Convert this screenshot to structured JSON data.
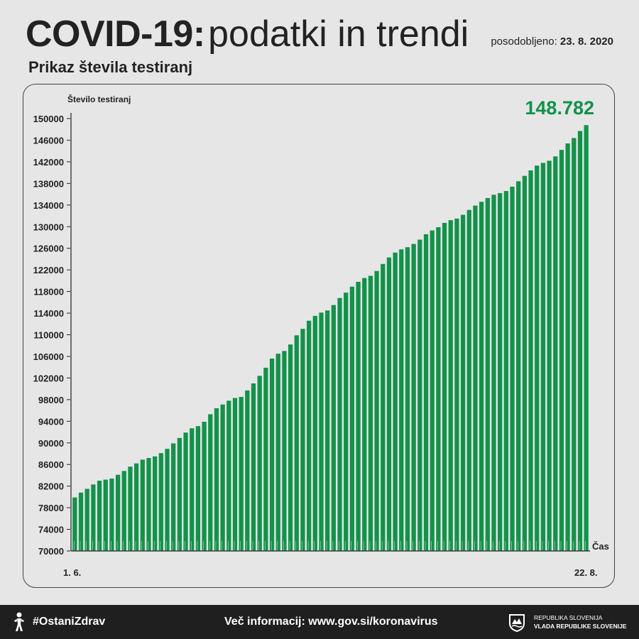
{
  "header": {
    "title_bold": "COVID-19:",
    "title_light": "podatki in trendi",
    "updated_label": "posodobljeno:",
    "updated_date": "23. 8. 2020",
    "subtitle": "Prikaz števila testiranj"
  },
  "colors": {
    "bar": "#12924a",
    "highlight_text": "#12924a",
    "background": "#e6e6e6",
    "footer_bg": "#1f1f1f"
  },
  "chart_data": {
    "type": "bar",
    "ylabel": "Število testiranj",
    "xlabel": "Čas",
    "ylim": [
      70000,
      150000
    ],
    "yticks": [
      "150000",
      "146000",
      "142000",
      "138000",
      "134000",
      "130000",
      "126000",
      "122000",
      "118000",
      "114000",
      "110000",
      "106000",
      "102000",
      "98000",
      "94000",
      "90000",
      "86000",
      "82000",
      "78000",
      "74000",
      "70000"
    ],
    "x_start_label": "1. 6.",
    "x_end_label": "22. 8.",
    "highlight_value": "148.782",
    "grid": false,
    "legend": "none",
    "values": [
      79900,
      80800,
      81500,
      82300,
      83000,
      83200,
      83400,
      84100,
      84800,
      85600,
      86200,
      86900,
      87200,
      87500,
      88100,
      88900,
      89900,
      90900,
      91900,
      92700,
      93100,
      93900,
      95300,
      96400,
      97100,
      97800,
      98300,
      98500,
      99700,
      101000,
      102400,
      103900,
      105600,
      106500,
      107000,
      108200,
      109900,
      111100,
      112600,
      113500,
      114100,
      114500,
      115500,
      116800,
      117800,
      118900,
      119800,
      120500,
      120900,
      121800,
      123100,
      124300,
      125200,
      125800,
      126200,
      126800,
      127600,
      128600,
      129300,
      129900,
      130700,
      131200,
      131500,
      132200,
      133100,
      133900,
      134600,
      135300,
      135900,
      136200,
      136600,
      137400,
      138400,
      139400,
      140400,
      141300,
      141800,
      142200,
      143000,
      144200,
      145400,
      146400,
      147700,
      148782
    ]
  },
  "footer": {
    "hashtag": "#OstaniZdrav",
    "moreinfo_label": "Več informacij:",
    "moreinfo_url": "www.gov.si/koronavirus",
    "gov_line1": "REPUBLIKA SLOVENIJA",
    "gov_line2": "VLADA REPUBLIKE SLOVENIJE"
  }
}
